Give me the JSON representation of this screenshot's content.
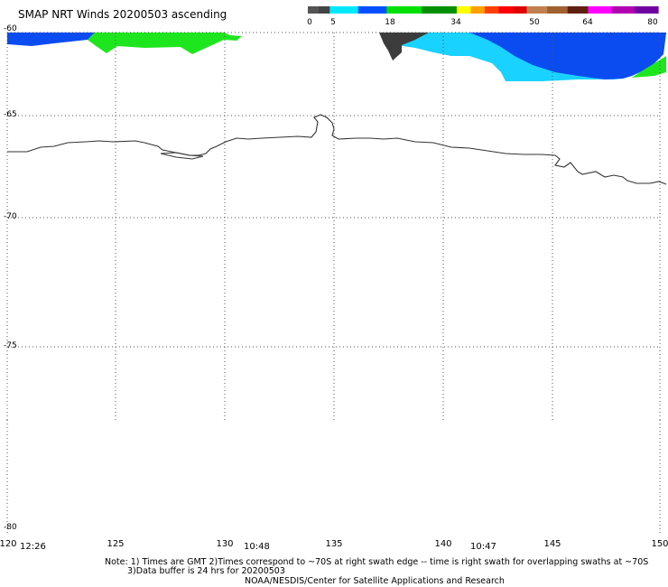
{
  "header": {
    "title": "SMAP NRT Winds 20200503 ascending"
  },
  "colorbar": {
    "tick_labels": [
      "0",
      "5",
      "18",
      "34",
      "50",
      "64",
      "80"
    ],
    "segments": [
      {
        "from": 0,
        "to": 5,
        "colors": [
          "#555555",
          "#444444"
        ]
      },
      {
        "from": 5,
        "to": 18,
        "colors": [
          "#00e8ff",
          "#0050ff"
        ]
      },
      {
        "from": 18,
        "to": 34,
        "colors": [
          "#00e000",
          "#009000"
        ]
      },
      {
        "from": 34,
        "to": 50,
        "colors": [
          "#ffff00",
          "#ffa000",
          "#ff4000",
          "#ff0000",
          "#e00000"
        ]
      },
      {
        "from": 50,
        "to": 64,
        "colors": [
          "#c08050",
          "#a06030",
          "#602010"
        ]
      },
      {
        "from": 64,
        "to": 80,
        "colors": [
          "#ff00ff",
          "#b000b0",
          "#7000a0"
        ]
      }
    ]
  },
  "map": {
    "lon_range": [
      120,
      150
    ],
    "lat_range": [
      -80,
      -60
    ],
    "lat_ticks": [
      "-60",
      "-65",
      "-70",
      "-75",
      "-80"
    ],
    "lon_ticks": [
      "120",
      "125",
      "130",
      "135",
      "140",
      "145",
      "150"
    ],
    "pass_times": [
      "12:26",
      "10:48",
      "10:47"
    ],
    "colors": {
      "coastline": "#333333",
      "grid": "#555555",
      "wind_blue": "#0a4cf0",
      "wind_green": "#1ee61e",
      "wind_cyan": "#19d2ff",
      "wind_dark": "#3c3c3c"
    }
  },
  "footer": {
    "note_line1": "Note: 1) Times are GMT 2)Times correspond to ~70S at right swath edge -- time is right swath for overlapping swaths at ~70S",
    "note_line2": "3)Data buffer is 24 hrs for 20200503",
    "credit": "NOAA/NESDIS/Center for Satellite Applications and Research"
  }
}
